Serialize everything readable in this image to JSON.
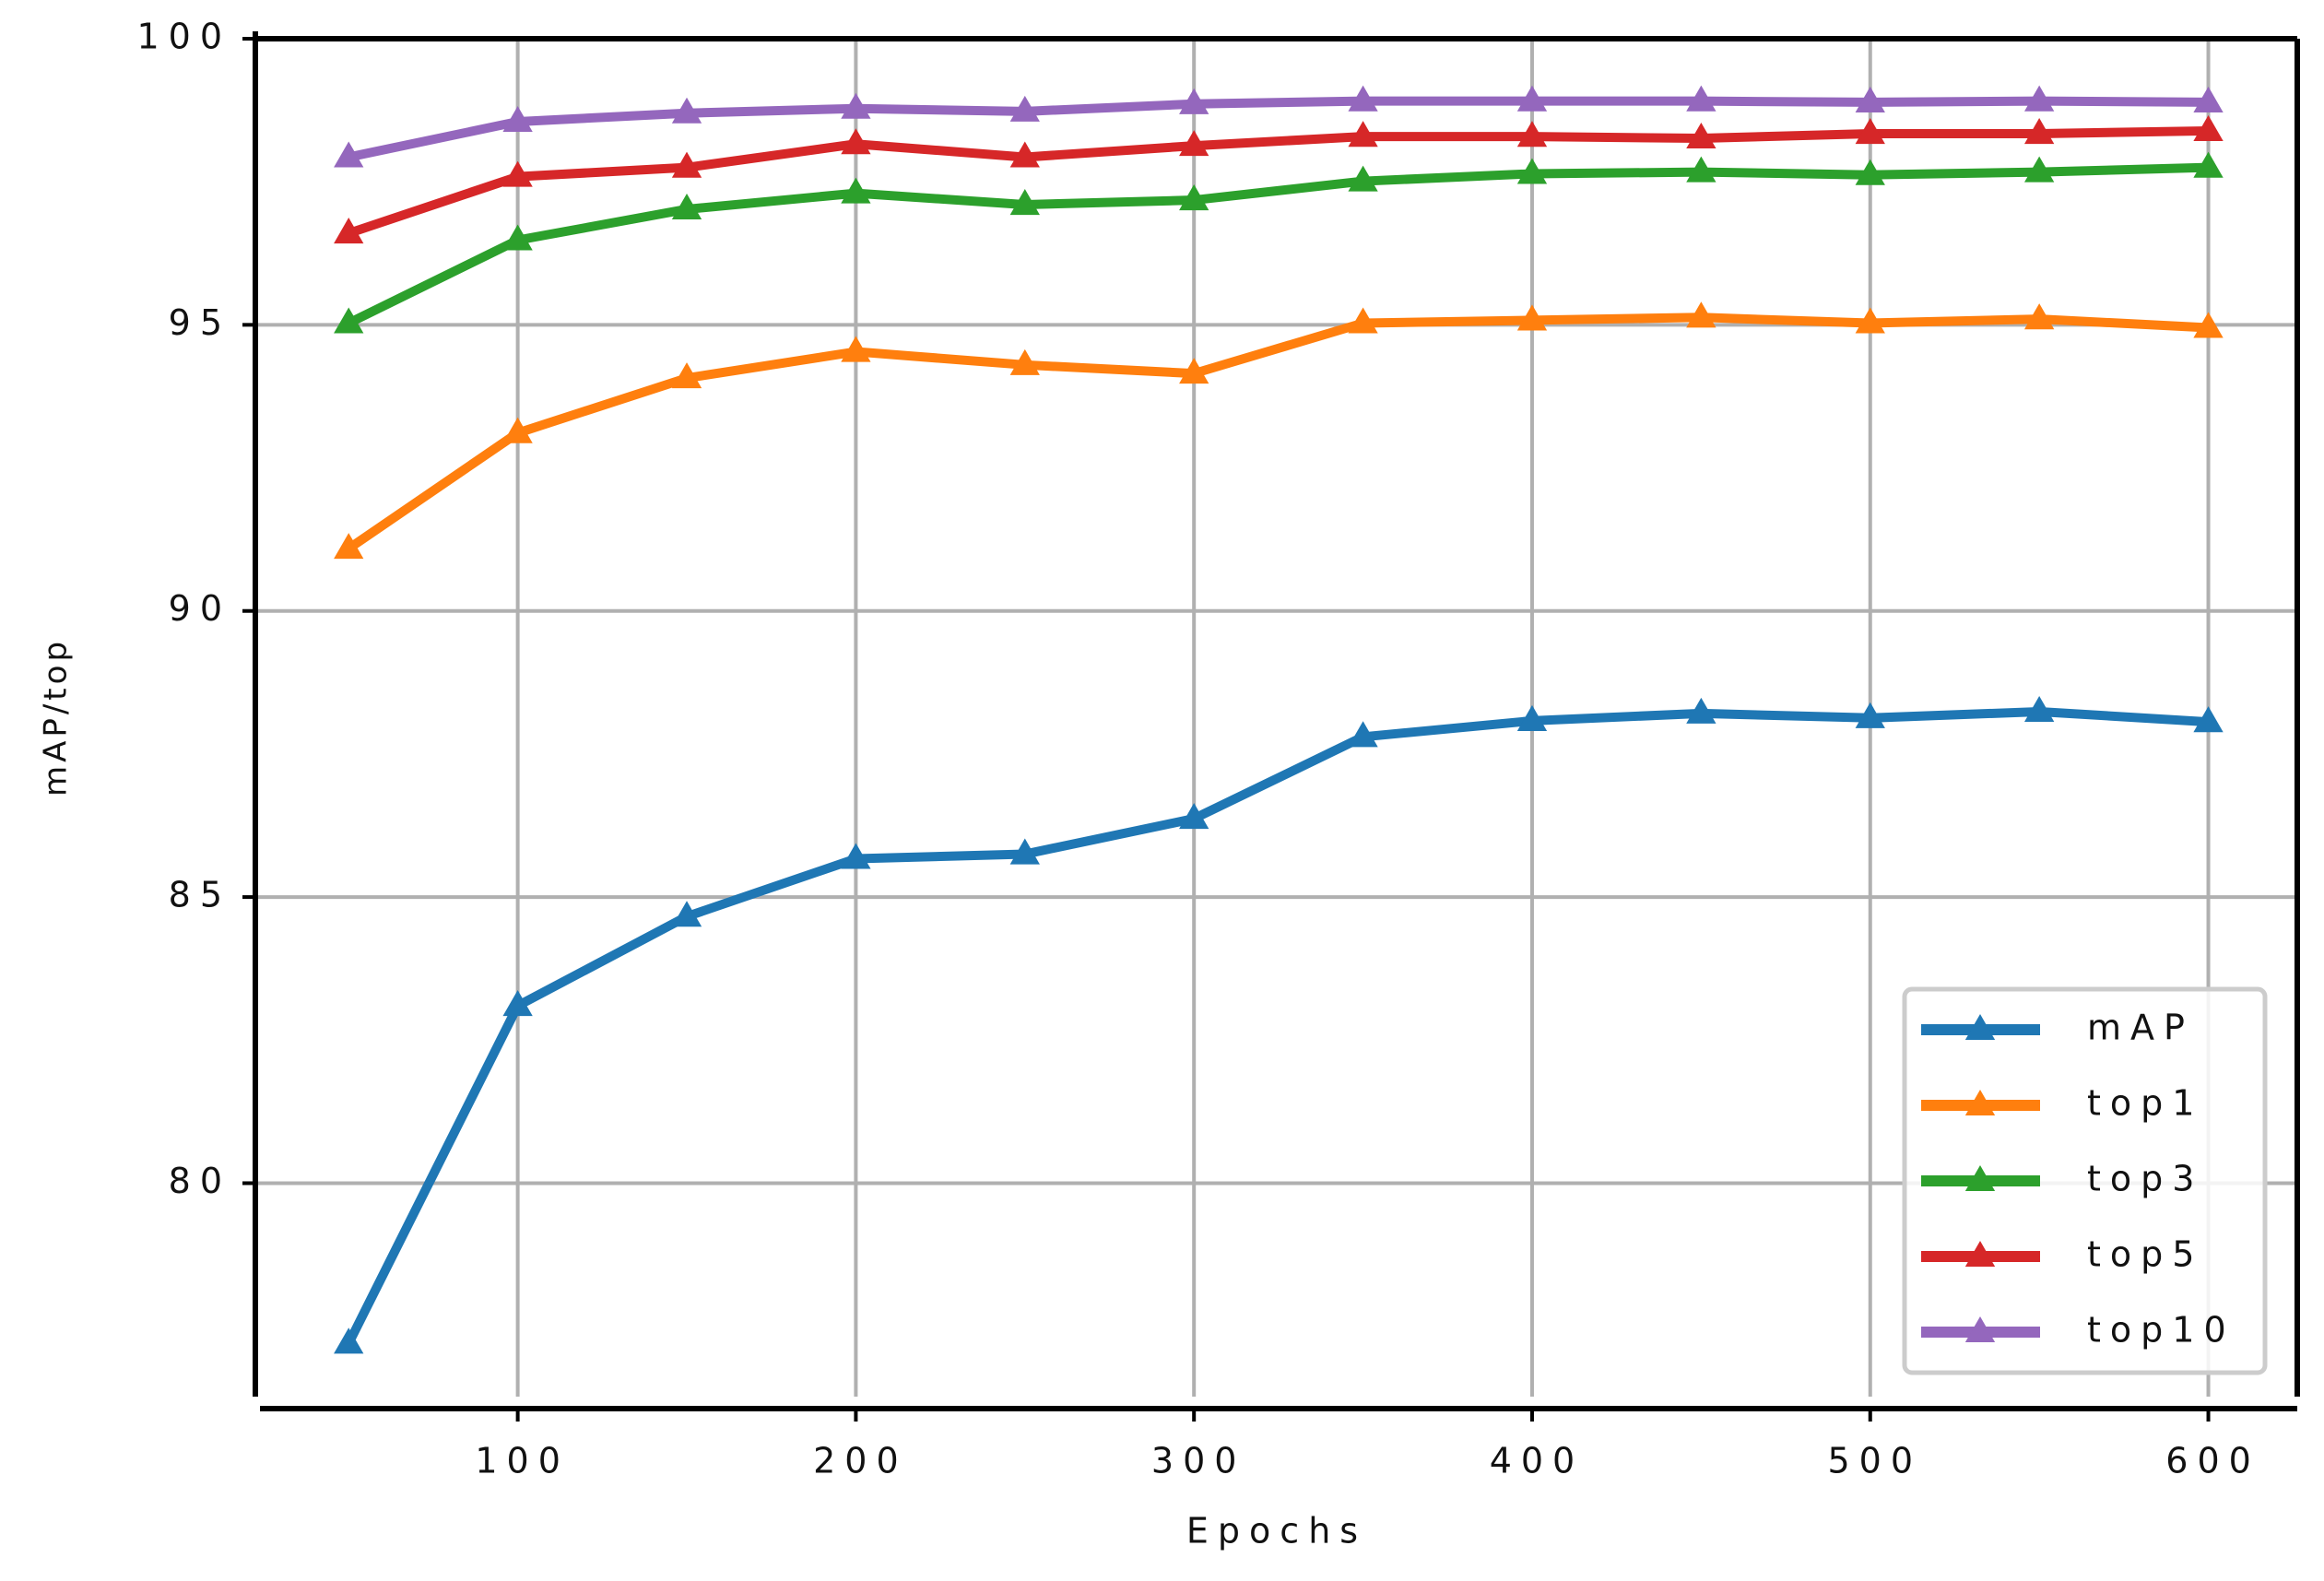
{
  "chart_data": {
    "type": "line",
    "xlabel": "Epochs",
    "ylabel": "mAP/top",
    "x": [
      50,
      100,
      150,
      200,
      250,
      300,
      350,
      400,
      450,
      500,
      550,
      600
    ],
    "series": [
      {
        "name": "mAP",
        "color": "#1f77b4",
        "values": [
          77.2,
          83.1,
          84.66,
          85.67,
          85.75,
          86.37,
          87.8,
          88.08,
          88.21,
          88.13,
          88.24,
          88.06
        ]
      },
      {
        "name": "top1",
        "color": "#ff7f0e",
        "values": [
          91.09,
          93.11,
          94.07,
          94.53,
          94.3,
          94.15,
          95.03,
          95.08,
          95.13,
          95.03,
          95.1,
          94.95
        ]
      },
      {
        "name": "top3",
        "color": "#2ca02c",
        "values": [
          95.03,
          96.48,
          97.02,
          97.3,
          97.1,
          97.18,
          97.51,
          97.64,
          97.67,
          97.62,
          97.67,
          97.75
        ]
      },
      {
        "name": "top5",
        "color": "#d62728",
        "values": [
          96.6,
          97.59,
          97.75,
          98.16,
          97.93,
          98.13,
          98.29,
          98.29,
          98.26,
          98.34,
          98.34,
          98.39
        ]
      },
      {
        "name": "top10",
        "color": "#9467bd",
        "values": [
          97.93,
          98.55,
          98.7,
          98.78,
          98.73,
          98.86,
          98.91,
          98.91,
          98.91,
          98.89,
          98.91,
          98.89
        ]
      }
    ],
    "xlim": [
      22.4,
      626.3
    ],
    "ylim": [
      76.27,
      100
    ],
    "xticks": [
      100,
      200,
      300,
      400,
      500,
      600
    ],
    "yticks": [
      80,
      85,
      90,
      95,
      100
    ],
    "grid": true,
    "legend": "lower right",
    "marker": "triangle"
  }
}
